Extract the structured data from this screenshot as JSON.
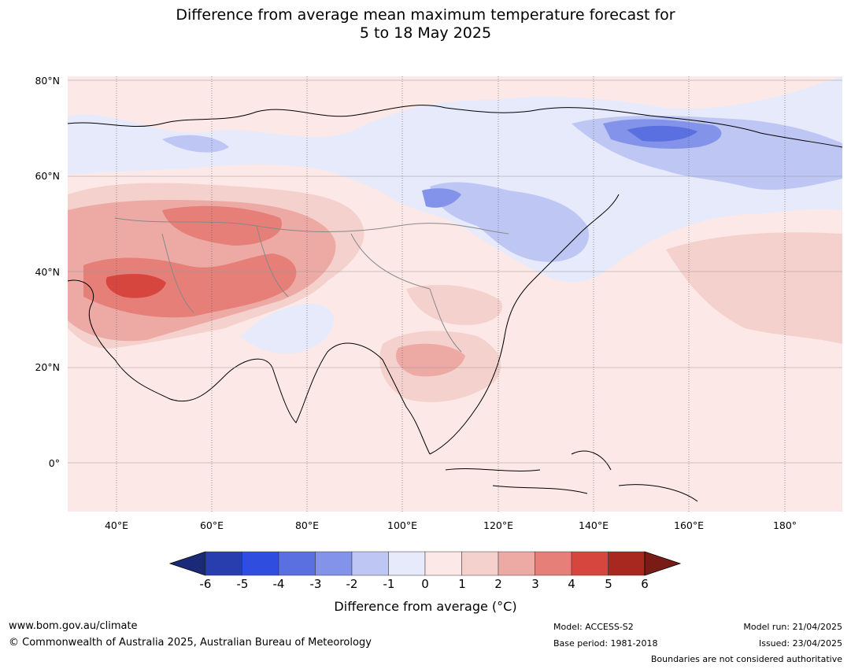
{
  "title_line1": "Difference from average mean maximum temperature forecast for",
  "title_line2": "5 to 18 May 2025",
  "map": {
    "lat_labels": [
      "80°N",
      "60°N",
      "40°N",
      "20°N",
      "0°"
    ],
    "lon_labels": [
      "40°E",
      "60°E",
      "80°E",
      "100°E",
      "120°E",
      "140°E",
      "160°E",
      "180°"
    ]
  },
  "colorbar": {
    "ticks": [
      "-6",
      "-5",
      "-4",
      "-3",
      "-2",
      "-1",
      "0",
      "1",
      "2",
      "3",
      "4",
      "5",
      "6"
    ],
    "colors": [
      "#1a2a78",
      "#283eae",
      "#2f4ee0",
      "#5a6fe0",
      "#8393ea",
      "#bec6f4",
      "#e6eafb",
      "#fce9e7",
      "#f5d1cd",
      "#eda9a4",
      "#e57f78",
      "#d6463f",
      "#a8281f",
      "#7a1c16"
    ],
    "label": "Difference from average (°C)"
  },
  "footer": {
    "url": "www.bom.gov.au/climate",
    "copyright": "© Commonwealth of Australia 2025, Australian Bureau of Meteorology",
    "model": "Model: ACCESS-S2",
    "base_period": "Base period: 1981-2018",
    "model_run": "Model run: 21/04/2025",
    "issued": "Issued: 23/04/2025",
    "boundaries": "Boundaries are not considered authoritative"
  }
}
